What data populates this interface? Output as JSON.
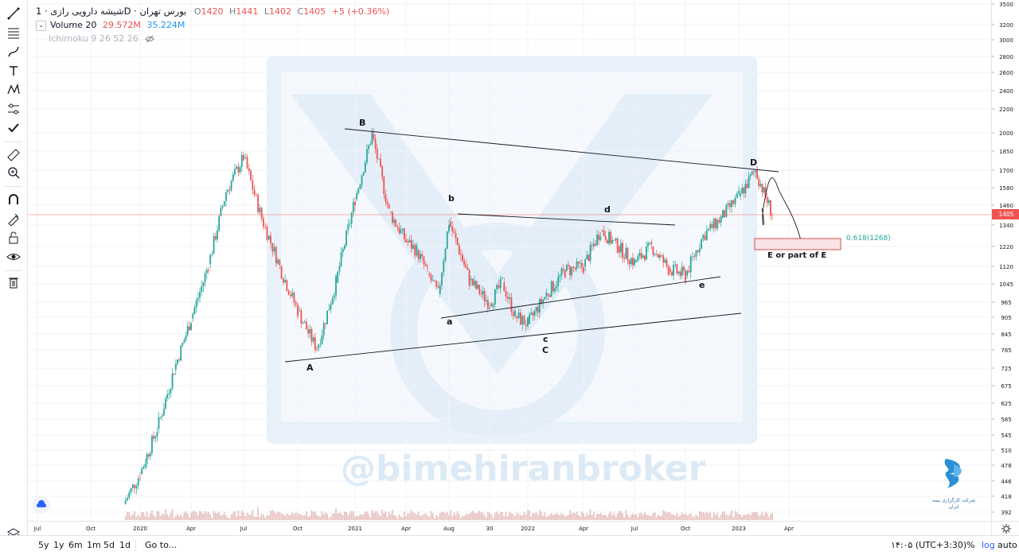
{
  "legend": {
    "symbol": "شیشه دارویی رازی · 1D · بورس تهران",
    "open_label": "O",
    "open": "1420",
    "high_label": "H",
    "high": "1441",
    "low_label": "L",
    "low": "1402",
    "close_label": "C",
    "close": "1405",
    "change": "+5 (+0.36%)",
    "volume_label": "Volume 20",
    "volume_a": "29.572M",
    "volume_b": "35.224M",
    "ichimoku_label": "Ichimoku 9 26 52 26"
  },
  "watermark": "@bimehiranbroker",
  "broker_logo_text": "شرکت کارگزاری بیمه ایران",
  "chart_data": {
    "type": "candlestick",
    "price_axis_ticks": [
      "3500",
      "3200",
      "3000",
      "2800",
      "2600",
      "2400",
      "2200",
      "2000",
      "1850",
      "1700",
      "1580",
      "1460",
      "1340",
      "1220",
      "1120",
      "1045",
      "965",
      "905",
      "845",
      "785",
      "725",
      "675",
      "625",
      "585",
      "545",
      "510",
      "478",
      "446",
      "418",
      "392"
    ],
    "current_price": "1405",
    "time_axis_ticks": [
      "Jul",
      "Oct",
      "2020",
      "Apr",
      "Jul",
      "Oct",
      "2021",
      "Apr",
      "Aug",
      "30",
      "2022",
      "Apr",
      "Jul",
      "Oct",
      "2023",
      "Apr"
    ],
    "wave_labels": [
      "A",
      "B",
      "a",
      "b",
      "c",
      "C",
      "d",
      "e",
      "D"
    ],
    "fib_label": "0.618(1268)",
    "target_label": "E or part of E",
    "price_path": [
      [
        "2019-12",
        405
      ],
      [
        "2020-01",
        460
      ],
      [
        "2020-02",
        560
      ],
      [
        "2020-03",
        720
      ],
      [
        "2020-04",
        900
      ],
      [
        "2020-05",
        1130
      ],
      [
        "2020-06",
        1550
      ],
      [
        "2020-07",
        1800
      ],
      [
        "2020-08",
        1380
      ],
      [
        "2020-09",
        1120
      ],
      [
        "2020-10",
        930
      ],
      [
        "2020-11",
        790
      ],
      [
        "2020-12",
        1050
      ],
      [
        "2021-01",
        1500
      ],
      [
        "2021-02",
        1990
      ],
      [
        "2021-03",
        1420
      ],
      [
        "2021-04",
        1250
      ],
      [
        "2021-05",
        1200
      ],
      [
        "2021-06",
        1090
      ],
      [
        "2021-07",
        1000
      ],
      [
        "2021-08",
        1360
      ],
      [
        "2021-09",
        1060
      ],
      [
        "2021-10",
        960
      ],
      [
        "2021-11",
        1050
      ],
      [
        "2021-12",
        910
      ],
      [
        "2022-01",
        880
      ],
      [
        "2022-02",
        1000
      ],
      [
        "2022-03",
        1100
      ],
      [
        "2022-04",
        1120
      ],
      [
        "2022-05",
        1310
      ],
      [
        "2022-06",
        1220
      ],
      [
        "2022-07",
        1140
      ],
      [
        "2022-08",
        1220
      ],
      [
        "2022-09",
        1110
      ],
      [
        "2022-10",
        1080
      ],
      [
        "2022-11",
        1280
      ],
      [
        "2022-12",
        1380
      ],
      [
        "2023-01",
        1520
      ],
      [
        "2023-02",
        1700
      ],
      [
        "2023-03",
        1405
      ]
    ]
  },
  "bottom": {
    "ranges": [
      "5y",
      "1y",
      "6m",
      "1m",
      "5d",
      "1d"
    ],
    "goto": "Go to...",
    "clock": "۱۴:۰۵ (UTC+3:30)",
    "percent": "%",
    "log": "log",
    "auto": "auto"
  },
  "colors": {
    "up": "#26a69a",
    "down": "#ef5350",
    "volume": "#e8c4c2",
    "watermark": "#e6f0f9",
    "accent": "#2962ff"
  }
}
